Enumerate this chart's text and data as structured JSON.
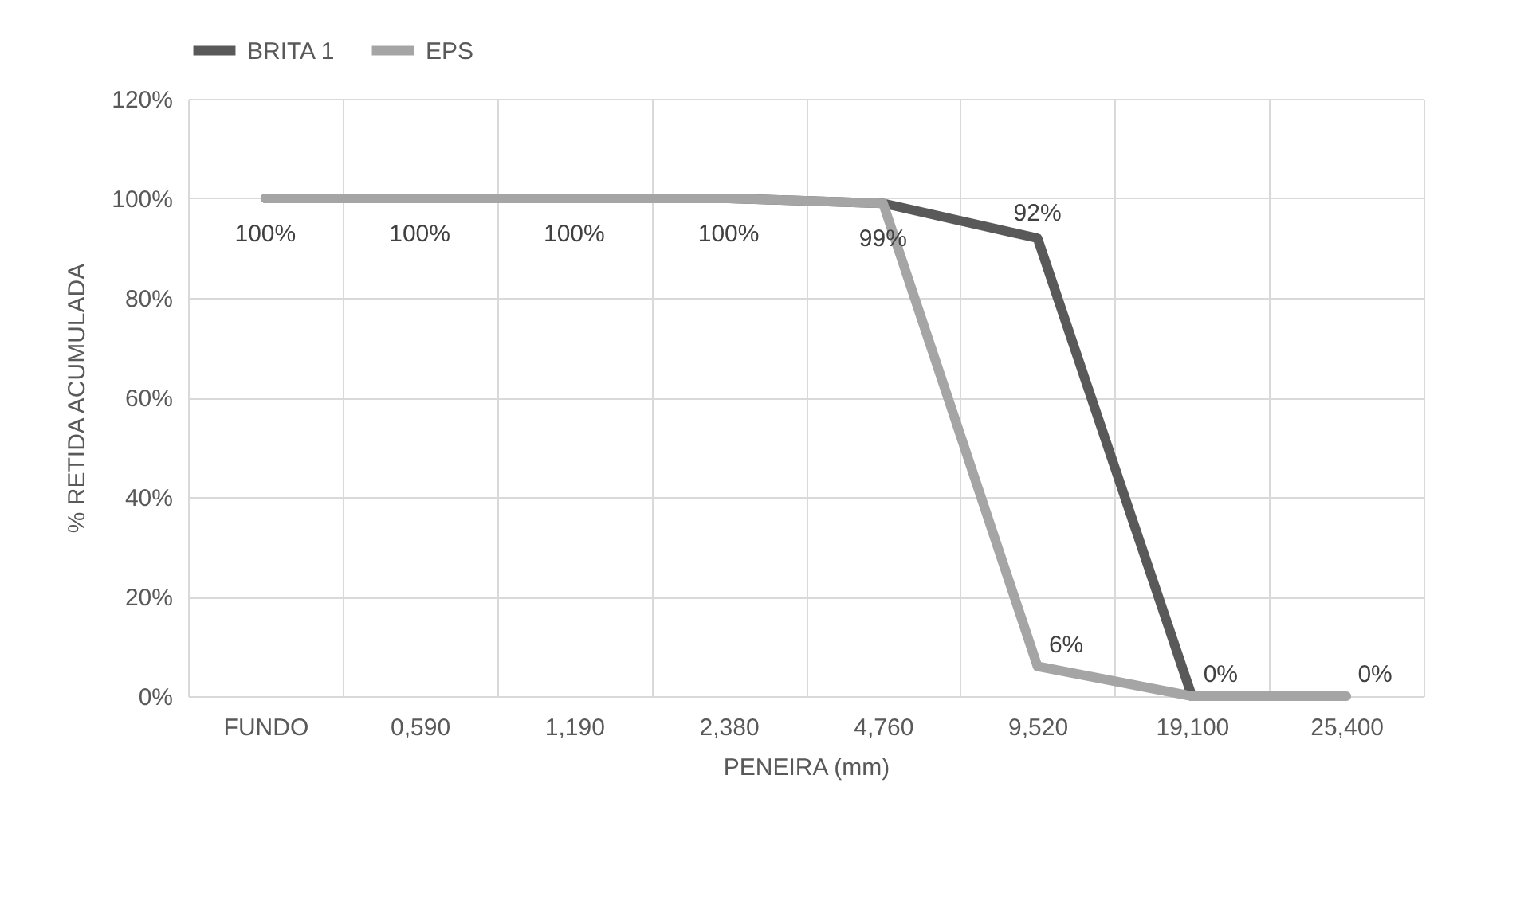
{
  "chart_data": {
    "type": "line",
    "xlabel": "PENEIRA (mm)",
    "ylabel": "% RETIDA ACUMULADA",
    "categories": [
      "FUNDO",
      "0,590",
      "1,190",
      "2,380",
      "4,760",
      "9,520",
      "19,100",
      "25,400"
    ],
    "series": [
      {
        "name": "BRITA 1",
        "color": "#595959",
        "values": [
          100,
          100,
          100,
          100,
          99,
          92,
          0,
          null
        ],
        "value_labels": [
          "100%",
          "100%",
          "100%",
          "100%",
          "99%",
          "92%",
          null,
          null
        ]
      },
      {
        "name": "EPS",
        "color": "#a5a5a5",
        "values": [
          100,
          100,
          100,
          100,
          99,
          6,
          0,
          0
        ],
        "value_labels": [
          null,
          null,
          null,
          null,
          null,
          "6%",
          "0%",
          "0%"
        ]
      }
    ],
    "ylim": [
      0,
      120
    ],
    "yticks": [
      {
        "value": 0,
        "label": "0%"
      },
      {
        "value": 20,
        "label": "20%"
      },
      {
        "value": 40,
        "label": "40%"
      },
      {
        "value": 60,
        "label": "60%"
      },
      {
        "value": 80,
        "label": "80%"
      },
      {
        "value": 100,
        "label": "100%"
      },
      {
        "value": 120,
        "label": "120%"
      }
    ],
    "grid": true,
    "legend": "top",
    "marker": "none",
    "line_style": "solid"
  }
}
